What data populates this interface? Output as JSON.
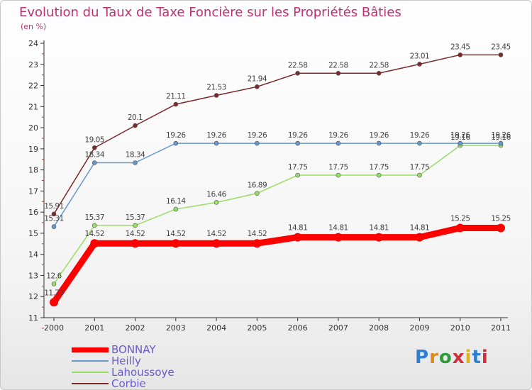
{
  "title": "Evolution du Taux de Taxe Foncière sur les Propriétés Bâties",
  "unit_label": "(en %)",
  "logo_text": "Proxiti",
  "chart_data": {
    "type": "line",
    "title": "Evolution du Taux de Taxe Foncière sur les Propriétés Bâties",
    "ylabel": "(en %)",
    "xlabel": "",
    "x": [
      "2000",
      "2001",
      "2002",
      "2003",
      "2004",
      "2005",
      "2006",
      "2007",
      "2008",
      "2009",
      "2010",
      "2011"
    ],
    "ylim": [
      11,
      24
    ],
    "yticks": [
      "11",
      "12",
      "13",
      "14",
      "15",
      "16",
      "17",
      "18",
      "19",
      "20",
      "21",
      "22",
      "23",
      "24"
    ],
    "grid": false,
    "legend_position": "bottom-left",
    "series": [
      {
        "name": "BONNAY",
        "color": "#ff0000",
        "values": [
          11.73,
          14.52,
          14.52,
          14.52,
          14.52,
          14.52,
          14.81,
          14.81,
          14.81,
          14.81,
          15.25,
          15.25
        ],
        "labels": [
          "11.73",
          "14.52",
          "14.52",
          "14.52",
          "14.52",
          "14.52",
          "14.81",
          "14.81",
          "14.81",
          "14.81",
          "15.25",
          "15.25"
        ]
      },
      {
        "name": "Heilly",
        "color": "#6699cc",
        "values": [
          15.31,
          18.34,
          18.34,
          19.26,
          19.26,
          19.26,
          19.26,
          19.26,
          19.26,
          19.26,
          19.26,
          19.26
        ],
        "labels": [
          "15.31",
          "18.34",
          "18.34",
          "19.26",
          "19.26",
          "19.26",
          "19.26",
          "19.26",
          "19.26",
          "19.26",
          "19.26",
          "19.26"
        ]
      },
      {
        "name": "Lahoussoye",
        "color": "#99dd66",
        "values": [
          12.6,
          15.37,
          15.37,
          16.14,
          16.46,
          16.89,
          17.75,
          17.75,
          17.75,
          17.75,
          19.16,
          19.16
        ],
        "labels": [
          "12.6",
          "15.37",
          "15.37",
          "16.14",
          "16.46",
          "16.89",
          "17.75",
          "17.75",
          "17.75",
          "17.75",
          "19.16",
          "19.16"
        ]
      },
      {
        "name": "Corbie",
        "color": "#7a2a2a",
        "values": [
          15.91,
          19.05,
          20.1,
          21.11,
          21.53,
          21.94,
          22.58,
          22.58,
          22.58,
          23.01,
          23.45,
          23.45
        ],
        "labels": [
          "15.91",
          "19.05",
          "20.1",
          "21.11",
          "21.53",
          "21.94",
          "22.58",
          "22.58",
          "22.58",
          "23.01",
          "23.45",
          "23.45"
        ]
      }
    ]
  }
}
